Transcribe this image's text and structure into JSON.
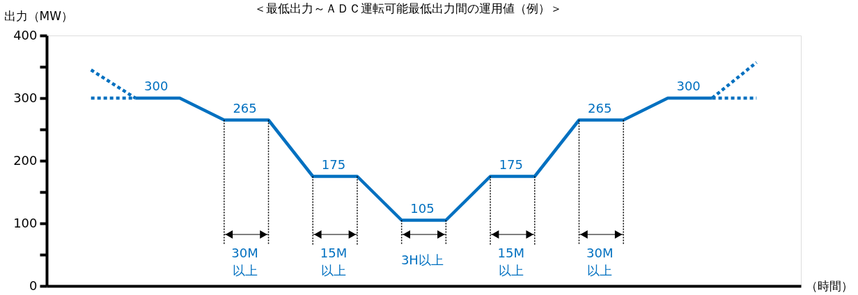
{
  "chart_data": {
    "type": "line",
    "title": "＜最低出力～ＡＤＣ運転可能最低出力間の運用値（例）＞",
    "ylabel": "出力（MW）",
    "xlabel": "（時間）",
    "categories": [
      null,
      null,
      null,
      null,
      null,
      null,
      null,
      null,
      null,
      null,
      null,
      null,
      null,
      null,
      null,
      null
    ],
    "ylim": [
      0,
      400
    ],
    "yticks": [
      0,
      {
        "value": 50,
        "label": null
      },
      100,
      {
        "value": 150,
        "label": null
      },
      200,
      {
        "value": 250,
        "label": null
      },
      300,
      {
        "value": 350,
        "label": null
      },
      400
    ],
    "tick_labels": "y",
    "grid": false,
    "series": [
      {
        "color": "#0070c0",
        "line_style": "solid",
        "values": [
          null,
          300,
          300,
          265,
          265,
          175,
          175,
          105,
          105,
          175,
          175,
          265,
          265,
          300,
          300,
          null
        ],
        "value_labels": [
          null,
          "300",
          null,
          "265",
          null,
          "175",
          null,
          "105",
          null,
          "175",
          null,
          "265",
          null,
          "300",
          null,
          null
        ]
      },
      {
        "color": "#0070c0",
        "line_style": "dotted",
        "values": [
          300,
          300,
          null,
          null,
          null,
          null,
          null,
          null,
          null,
          null,
          null,
          null,
          null,
          null,
          null,
          null
        ]
      },
      {
        "color": "#0070c0",
        "line_style": "dotted",
        "values": [
          345,
          300,
          null,
          null,
          null,
          null,
          null,
          null,
          null,
          null,
          null,
          null,
          null,
          null,
          null,
          null
        ]
      },
      {
        "color": "#0070c0",
        "line_style": "dotted",
        "values": [
          null,
          null,
          null,
          null,
          null,
          null,
          null,
          null,
          null,
          null,
          null,
          null,
          null,
          null,
          300,
          300
        ]
      },
      {
        "color": "#0070c0",
        "line_style": "dotted",
        "values": [
          null,
          null,
          null,
          null,
          null,
          null,
          null,
          null,
          null,
          null,
          null,
          null,
          null,
          null,
          300,
          357
        ]
      }
    ],
    "annotations": [
      "30M\n以上",
      "15M\n以上",
      "3H以上",
      "15M\n以上",
      "30M\n以上"
    ]
  }
}
